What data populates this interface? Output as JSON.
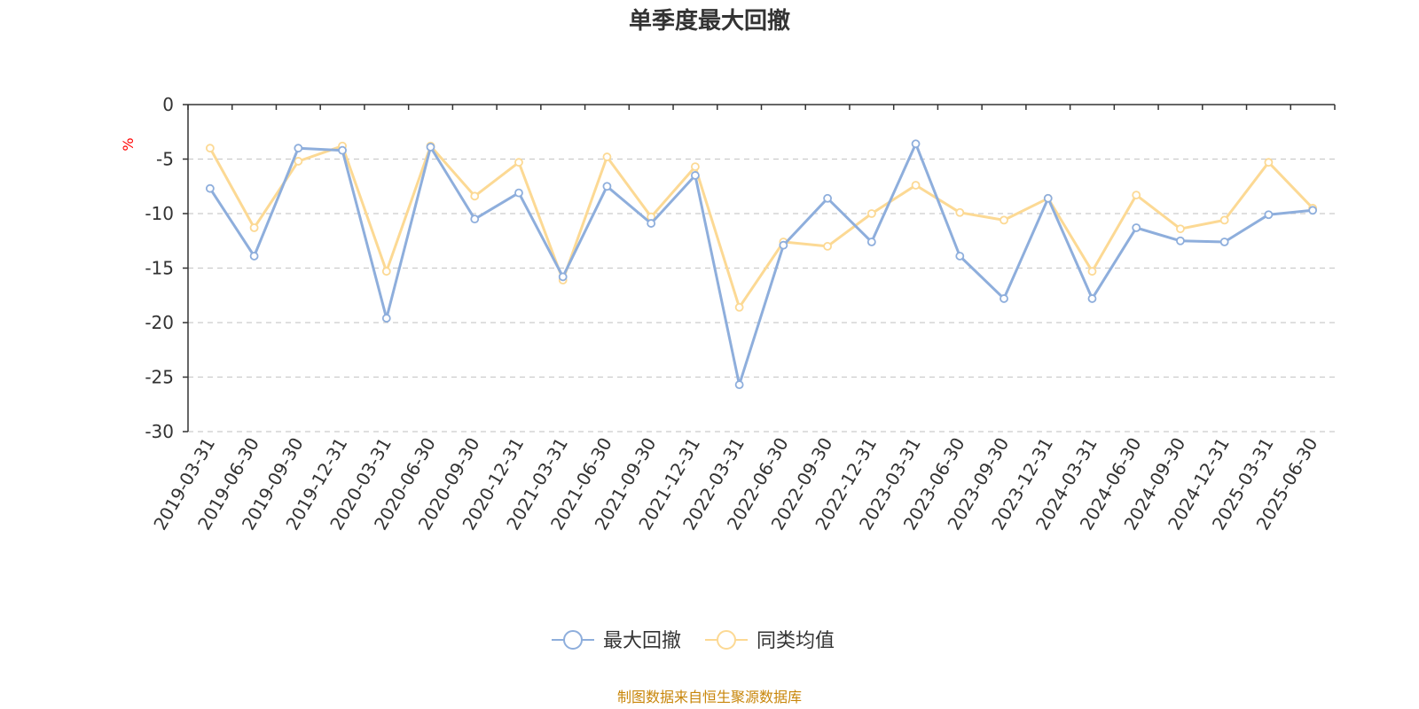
{
  "chart_data": {
    "type": "line",
    "title": "单季度最大回撤",
    "ylabel": "%",
    "ylim": [
      -30,
      0
    ],
    "yticks": [
      0,
      -5,
      -10,
      -15,
      -20,
      -25,
      -30
    ],
    "grid": true,
    "legend_position": "bottom-center",
    "categories": [
      "2019-03-31",
      "2019-06-30",
      "2019-09-30",
      "2019-12-31",
      "2020-03-31",
      "2020-06-30",
      "2020-09-30",
      "2020-12-31",
      "2021-03-31",
      "2021-06-30",
      "2021-09-30",
      "2021-12-31",
      "2022-03-31",
      "2022-06-30",
      "2022-09-30",
      "2022-12-31",
      "2023-03-31",
      "2023-06-30",
      "2023-09-30",
      "2023-12-31",
      "2024-03-31",
      "2024-06-30",
      "2024-09-30",
      "2024-12-31",
      "2025-03-31",
      "2025-06-30"
    ],
    "series": [
      {
        "name": "最大回撤",
        "color": "#8eaedc",
        "values": [
          -7.7,
          -13.9,
          -4.0,
          -4.2,
          -19.6,
          -3.9,
          -10.5,
          -8.1,
          -15.8,
          -7.5,
          -10.9,
          -6.5,
          -25.7,
          -12.9,
          -8.6,
          -12.6,
          -3.6,
          -13.9,
          -17.8,
          -8.6,
          -17.8,
          -11.3,
          -12.5,
          -12.6,
          -10.1,
          -9.7
        ]
      },
      {
        "name": "同类均值",
        "color": "#fcd994",
        "values": [
          -4.0,
          -11.3,
          -5.2,
          -3.8,
          -15.3,
          -3.8,
          -8.4,
          -5.3,
          -16.1,
          -4.8,
          -10.3,
          -5.7,
          -18.6,
          -12.6,
          -13.0,
          -10.0,
          -7.4,
          -9.9,
          -10.6,
          -8.6,
          -15.3,
          -8.3,
          -11.4,
          -10.6,
          -5.3,
          -9.5
        ]
      }
    ],
    "source": "制图数据来自恒生聚源数据库"
  },
  "colors": {
    "axis": "#333333",
    "grid": "#cccccc",
    "series_1": "#8eaedc",
    "series_2": "#fcd994",
    "source_text": "#c8860a",
    "unit_text": "#ff0000"
  }
}
